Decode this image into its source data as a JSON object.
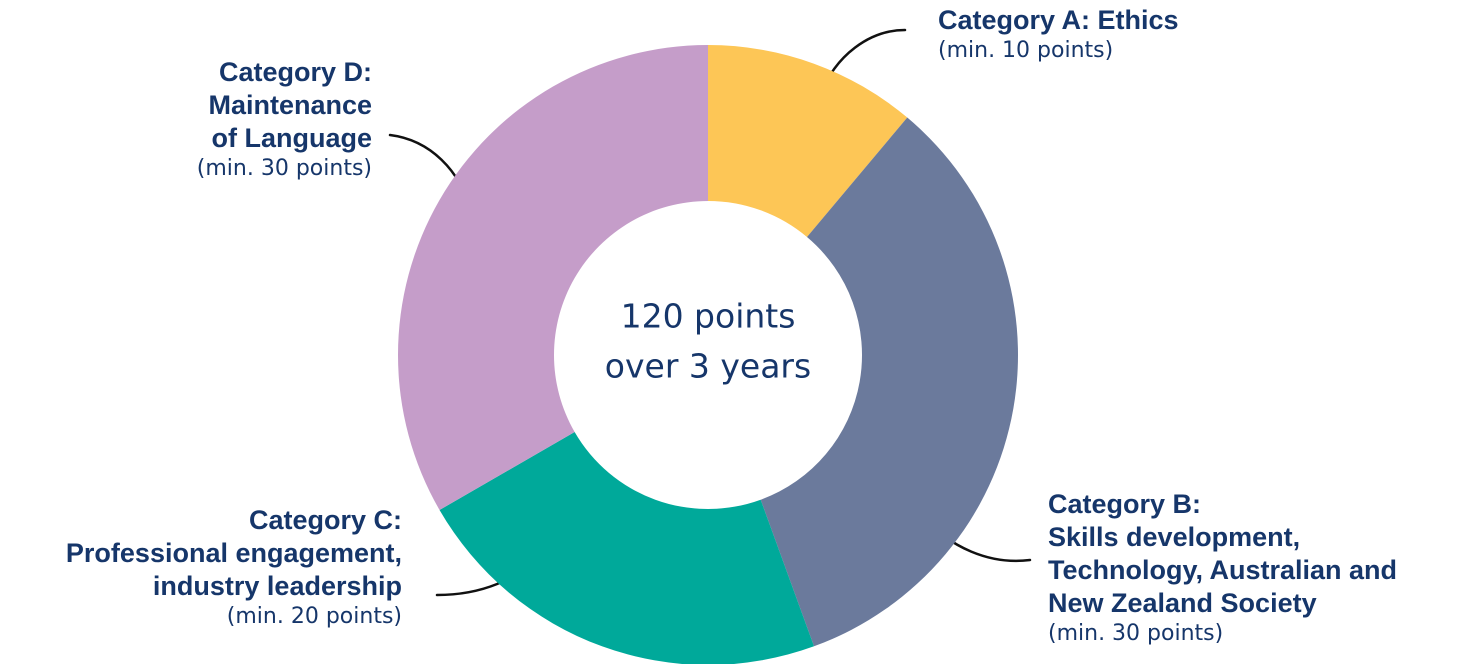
{
  "chart_data": {
    "type": "donut",
    "center_text": [
      "120 points",
      "over 3 years"
    ],
    "categories": [
      [
        "Category A: Ethics"
      ],
      [
        "Category B:",
        "Skills development,",
        "Technology, Australian and",
        "New Zealand Society"
      ],
      [
        "Category C:",
        "Professional engagement,",
        "industry leadership"
      ],
      [
        "Category D:",
        "Maintenance",
        "of Language"
      ]
    ],
    "values": [
      10,
      30,
      20,
      30
    ],
    "value_labels": [
      "(min. 10 points)",
      "(min. 30 points)",
      "(min. 20 points)",
      "(min. 30 points)"
    ],
    "colors": [
      "#fdc656",
      "#6b7a9c",
      "#00a99a",
      "#c59dc9"
    ]
  }
}
